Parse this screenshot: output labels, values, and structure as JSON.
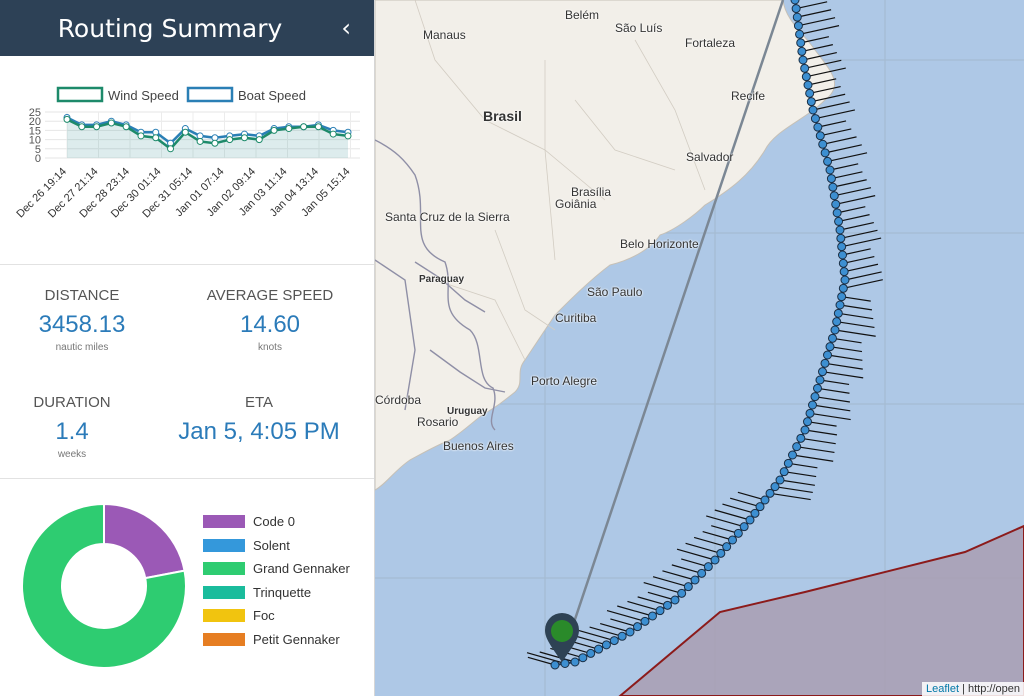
{
  "sidebar": {
    "title": "Routing Summary",
    "collapse_glyph": "‹",
    "stats": {
      "distance": {
        "label": "DISTANCE",
        "value": "3458.13",
        "unit": "nautic miles"
      },
      "avg_speed": {
        "label": "AVERAGE SPEED",
        "value": "14.60",
        "unit": "knots"
      },
      "duration": {
        "label": "DURATION",
        "value": "1.4",
        "unit": "weeks"
      },
      "eta": {
        "label": "ETA",
        "value": "Jan 5, 4:05 PM"
      }
    }
  },
  "chart_data": [
    {
      "type": "line",
      "series": [
        {
          "name": "Wind Speed",
          "color": "#1d8a6a",
          "values": [
            21,
            17,
            17,
            19,
            17,
            12,
            11,
            5,
            14,
            9,
            8,
            10,
            11,
            10,
            15,
            16,
            17,
            17,
            13,
            12
          ]
        },
        {
          "name": "Boat Speed",
          "color": "#2a7fb5",
          "values": [
            22,
            18,
            18,
            20,
            18,
            14,
            14,
            8,
            16,
            12,
            11,
            12,
            13,
            12,
            16,
            17,
            17,
            18,
            15,
            14
          ]
        }
      ],
      "x_labels": [
        "Dec 26 19:14",
        "Dec 27 21:14",
        "Dec 28 23:14",
        "Dec 30 01:14",
        "Dec 31 05:14",
        "Jan 01 07:14",
        "Jan 02 09:14",
        "Jan 03 11:14",
        "Jan 04 13:14",
        "Jan 05 15:14"
      ],
      "y_ticks": [
        0,
        5,
        10,
        15,
        20,
        25
      ],
      "ylim": [
        0,
        25
      ],
      "grid": true,
      "legend": "top"
    },
    {
      "type": "pie",
      "donut": true,
      "categories": [
        "Code 0",
        "Solent",
        "Grand Gennaker",
        "Trinquette",
        "Foc",
        "Petit Gennaker"
      ],
      "values": [
        22,
        0,
        78,
        0,
        0,
        0
      ],
      "colors": [
        "#9b59b6",
        "#3498db",
        "#2ecc71",
        "#1abc9c",
        "#f1c40f",
        "#e67e22"
      ]
    }
  ],
  "map": {
    "labels": [
      {
        "text": "Belém",
        "style": "city"
      },
      {
        "text": "Manaus",
        "style": "city"
      },
      {
        "text": "São Luís",
        "style": "city"
      },
      {
        "text": "Fortaleza",
        "style": "city"
      },
      {
        "text": "Brasil",
        "style": "bold"
      },
      {
        "text": "Recife",
        "style": "city"
      },
      {
        "text": "Salvador",
        "style": "city"
      },
      {
        "text": "Brasília",
        "style": "city"
      },
      {
        "text": "Goiânia",
        "style": "city"
      },
      {
        "text": "Santa Cruz de la Sierra",
        "style": "city"
      },
      {
        "text": "Belo Horizonte",
        "style": "city"
      },
      {
        "text": "Paraguay",
        "style": "country"
      },
      {
        "text": "São Paulo",
        "style": "city"
      },
      {
        "text": "Curitiba",
        "style": "city"
      },
      {
        "text": "Porto Alegre",
        "style": "city"
      },
      {
        "text": "Córdoba",
        "style": "city"
      },
      {
        "text": "Uruguay",
        "style": "country"
      },
      {
        "text": "Rosario",
        "style": "city"
      },
      {
        "text": "Buenos Aires",
        "style": "city"
      }
    ],
    "attribution_link": "Leaflet",
    "attribution_text": " | http://open"
  }
}
